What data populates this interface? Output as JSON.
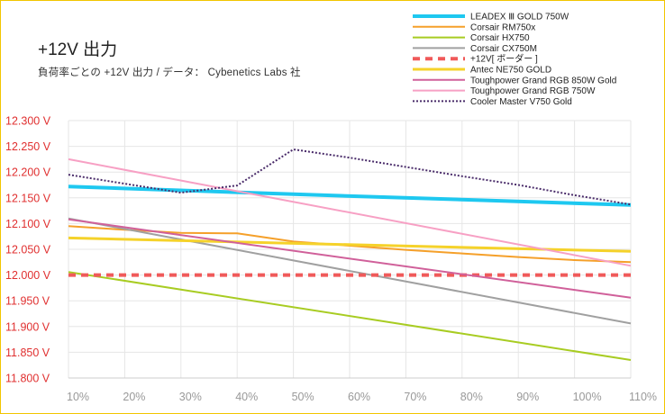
{
  "title": "+12V 出力",
  "subtitle": "負荷率ごとの +12V 出力 / データ： Cybenetics Labs 社",
  "chart_data": {
    "type": "line",
    "title": "+12V 出力",
    "subtitle": "負荷率ごとの +12V 出力 / データ： Cybenetics Labs 社",
    "xlabel": "",
    "ylabel": "",
    "x": [
      10,
      20,
      30,
      40,
      50,
      60,
      70,
      80,
      90,
      100,
      110
    ],
    "x_tick_labels": [
      "10%",
      "20%",
      "30%",
      "40%",
      "50%",
      "60%",
      "70%",
      "80%",
      "90%",
      "100%",
      "110%"
    ],
    "xlim": [
      10,
      110
    ],
    "ylim": [
      11.8,
      12.3
    ],
    "y_tick_values": [
      11.8,
      11.85,
      11.9,
      11.95,
      12.0,
      12.05,
      12.1,
      12.15,
      12.2,
      12.25,
      12.3
    ],
    "y_tick_labels": [
      "11.800 V",
      "11.850 V",
      "11.900 V",
      "11.950 V",
      "12.000 V",
      "12.050 V",
      "12.100 V",
      "12.150 V",
      "12.200 V",
      "12.250 V",
      "12.300 V"
    ],
    "grid": true,
    "legend_position": "top-right",
    "series": [
      {
        "name": "LEADEX Ⅲ GOLD 750W",
        "color": "#1ec8f0",
        "width": 4,
        "dash": "",
        "x": [
          10,
          50,
          110
        ],
        "values": [
          12.172,
          12.157,
          12.136
        ]
      },
      {
        "name": "Corsair RM750x",
        "color": "#f5a02a",
        "width": 2,
        "dash": "",
        "x": [
          10,
          20,
          30,
          40,
          50,
          60,
          70,
          80,
          90,
          100,
          110
        ],
        "values": [
          12.095,
          12.088,
          12.082,
          12.081,
          12.065,
          12.057,
          12.049,
          12.042,
          12.035,
          12.029,
          12.025
        ]
      },
      {
        "name": "Corsair HX750",
        "color": "#a8cc22",
        "width": 2,
        "dash": "",
        "x": [
          10,
          110
        ],
        "values": [
          12.006,
          11.835
        ]
      },
      {
        "name": "Corsair CX750M",
        "color": "#a0a0a0",
        "width": 2,
        "dash": "",
        "x": [
          10,
          110
        ],
        "values": [
          12.11,
          11.906
        ]
      },
      {
        "name": "+12V[ ボーダー ]",
        "color": "#f05a5a",
        "width": 4,
        "dash": "8,6",
        "x": [
          10,
          110
        ],
        "values": [
          12.0,
          12.0
        ]
      },
      {
        "name": "Antec NE750 GOLD",
        "color": "#f5d22a",
        "width": 3,
        "dash": "",
        "x": [
          10,
          110
        ],
        "values": [
          12.072,
          12.046
        ]
      },
      {
        "name": "Toughpower Grand RGB 850W Gold",
        "color": "#d0609a",
        "width": 2,
        "dash": "",
        "x": [
          10,
          110
        ],
        "values": [
          12.108,
          11.956
        ]
      },
      {
        "name": "Toughpower Grand RGB 750W",
        "color": "#f7a0c4",
        "width": 2,
        "dash": "",
        "x": [
          10,
          110
        ],
        "values": [
          12.225,
          12.018
        ]
      },
      {
        "name": "Cooler Master V750 Gold",
        "color": "#4a2c6a",
        "width": 2,
        "dash": "2,2",
        "x": [
          10,
          30,
          40,
          50,
          60,
          70,
          80,
          90,
          100,
          110
        ],
        "values": [
          12.195,
          12.16,
          12.174,
          12.244,
          12.228,
          12.21,
          12.192,
          12.175,
          12.155,
          12.137
        ]
      }
    ]
  }
}
